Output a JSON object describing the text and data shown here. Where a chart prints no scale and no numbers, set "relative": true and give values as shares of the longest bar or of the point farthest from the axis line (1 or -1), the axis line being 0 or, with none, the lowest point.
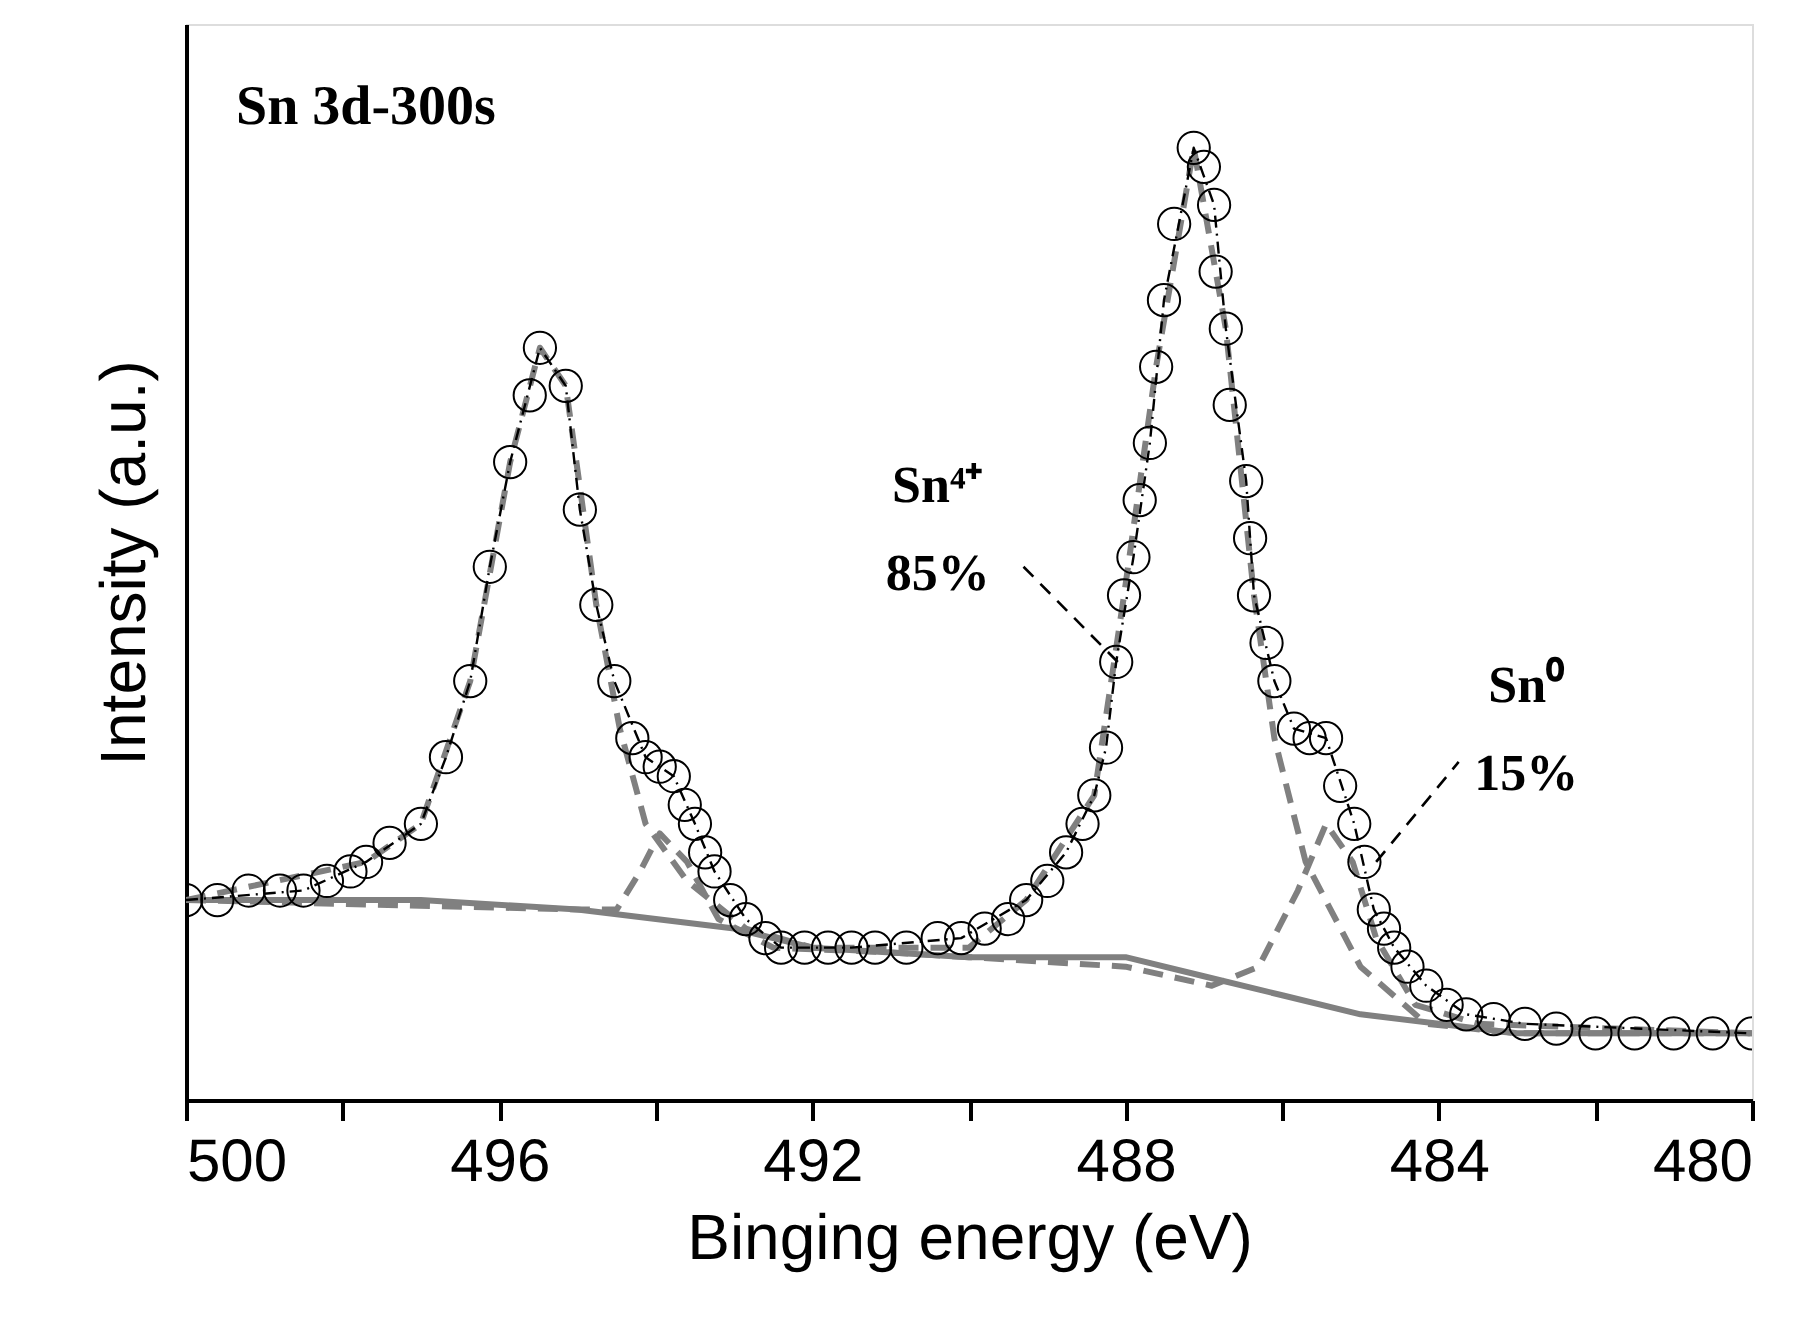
{
  "chart_data": {
    "type": "line",
    "relative": true,
    "xlabel": "Binging energy (eV)",
    "ylabel": "Intensity (a.u.)",
    "xlim": [
      500,
      480
    ],
    "xticks": [
      500,
      {
        "value": 498,
        "label": null
      },
      496,
      {
        "value": 494,
        "label": null
      },
      492,
      {
        "value": 490,
        "label": null
      },
      488,
      {
        "value": 486,
        "label": null
      },
      484,
      {
        "value": 482,
        "label": null
      },
      480
    ],
    "grid": false,
    "annotations": [
      "Sn 3d-300s",
      {
        "text": "Sn⁴⁺\n85%",
        "x": 488.1,
        "y": 0.46
      },
      {
        "text": "Sn⁰\n15%",
        "x": 484.8,
        "y": 0.25
      }
    ],
    "series": [
      {
        "color": "#808080",
        "line_style": "solid",
        "x": [
          500,
          497,
          495,
          494,
          493,
          492,
          490,
          489,
          488,
          487,
          486,
          485,
          484,
          483,
          480
        ],
        "values": [
          0.21,
          0.21,
          0.2,
          0.19,
          0.18,
          0.16,
          0.15,
          0.15,
          0.15,
          0.13,
          0.11,
          0.09,
          0.08,
          0.07,
          0.07
        ]
      },
      {
        "type": "line",
        "color": "#808080",
        "line_style": "dashed",
        "x": [
          500,
          497.7,
          497,
          496.37,
          495.86,
          495.48,
          495.15,
          494.76,
          494.46,
          494.13,
          493.6,
          492.85,
          492,
          490,
          489.27,
          488.4,
          488.02,
          487.61,
          487.13,
          486.72,
          486.36,
          486.1,
          485.7,
          485.0,
          484.16,
          483,
          480
        ],
        "values": [
          0.21,
          0.25,
          0.29,
          0.44,
          0.67,
          0.79,
          0.75,
          0.52,
          0.39,
          0.29,
          0.23,
          0.18,
          0.16,
          0.16,
          0.21,
          0.32,
          0.53,
          0.77,
          1.0,
          0.81,
          0.53,
          0.38,
          0.25,
          0.14,
          0.08,
          0.07,
          0.07
        ]
      },
      {
        "type": "line",
        "color": "#808080",
        "line_style": "dashed",
        "x": [
          500,
          495,
          494.5,
          494.2,
          493.95,
          493.6,
          493.2,
          492.5,
          491,
          490,
          488,
          486.9,
          486.3,
          485.8,
          485.44,
          485.1,
          484.8,
          484.3,
          483.5,
          480
        ],
        "values": [
          0.21,
          0.2,
          0.2,
          0.24,
          0.28,
          0.25,
          0.19,
          0.16,
          0.155,
          0.15,
          0.14,
          0.12,
          0.14,
          0.22,
          0.29,
          0.25,
          0.17,
          0.1,
          0.08,
          0.07
        ]
      },
      {
        "type": "line",
        "color": "#000000",
        "line_style": "dotted",
        "x": [
          500,
          498.5,
          497.7,
          497,
          496.68,
          496.37,
          496.12,
          495.86,
          495.48,
          495.15,
          494.97,
          494.76,
          494.53,
          494.13,
          493.77,
          493.5,
          493.25,
          492.85,
          492.4,
          491.5,
          490.1,
          489.27,
          488.76,
          488.4,
          488.25,
          488.12,
          487.9,
          487.69,
          487.51,
          487.13,
          486.87,
          486.72,
          486.46,
          486.36,
          486.1,
          485.85,
          485.44,
          485.08,
          484.83,
          484.57,
          484.16,
          483.65,
          482.9,
          480
        ],
        "values": [
          0.21,
          0.22,
          0.25,
          0.29,
          0.36,
          0.44,
          0.56,
          0.67,
          0.79,
          0.75,
          0.62,
          0.52,
          0.44,
          0.36,
          0.34,
          0.29,
          0.24,
          0.19,
          0.16,
          0.16,
          0.17,
          0.21,
          0.26,
          0.32,
          0.37,
          0.46,
          0.57,
          0.69,
          0.84,
          1.0,
          0.94,
          0.81,
          0.65,
          0.53,
          0.44,
          0.39,
          0.38,
          0.29,
          0.2,
          0.16,
          0.12,
          0.09,
          0.08,
          0.07
        ]
      },
      {
        "type": "scatter",
        "color": "#000000",
        "marker": "circle",
        "x": [
          500,
          499.6,
          499.2,
          498.8,
          498.5,
          498.2,
          497.9,
          497.7,
          497.4,
          497.0,
          496.68,
          496.37,
          496.12,
          495.86,
          495.61,
          495.48,
          495.15,
          494.97,
          494.76,
          494.53,
          494.3,
          494.13,
          493.95,
          493.77,
          493.63,
          493.5,
          493.37,
          493.25,
          493.05,
          492.85,
          492.6,
          492.4,
          492.1,
          491.8,
          491.5,
          491.2,
          490.8,
          490.4,
          490.1,
          489.8,
          489.5,
          489.27,
          489.0,
          488.76,
          488.55,
          488.4,
          488.25,
          488.12,
          488.02,
          487.9,
          487.82,
          487.69,
          487.61,
          487.51,
          487.38,
          487.13,
          487.0,
          486.87,
          486.85,
          486.72,
          486.67,
          486.46,
          486.41,
          486.36,
          486.2,
          486.1,
          485.85,
          485.65,
          485.44,
          485.26,
          485.08,
          484.95,
          484.83,
          484.7,
          484.57,
          484.4,
          484.16,
          483.9,
          483.65,
          483.3,
          482.9,
          482.5,
          482.0,
          481.5,
          481.0,
          480.5,
          480
        ],
        "values": [
          0.21,
          0.21,
          0.22,
          0.22,
          0.22,
          0.23,
          0.24,
          0.25,
          0.27,
          0.29,
          0.36,
          0.44,
          0.56,
          0.67,
          0.74,
          0.79,
          0.75,
          0.62,
          0.52,
          0.44,
          0.38,
          0.36,
          0.35,
          0.34,
          0.31,
          0.29,
          0.26,
          0.24,
          0.21,
          0.19,
          0.17,
          0.16,
          0.16,
          0.16,
          0.16,
          0.16,
          0.16,
          0.17,
          0.17,
          0.18,
          0.19,
          0.21,
          0.23,
          0.26,
          0.29,
          0.32,
          0.37,
          0.46,
          0.53,
          0.57,
          0.63,
          0.69,
          0.77,
          0.84,
          0.92,
          1.0,
          0.98,
          0.94,
          0.87,
          0.81,
          0.73,
          0.65,
          0.59,
          0.53,
          0.48,
          0.44,
          0.39,
          0.38,
          0.38,
          0.33,
          0.29,
          0.25,
          0.2,
          0.18,
          0.16,
          0.14,
          0.12,
          0.1,
          0.09,
          0.085,
          0.08,
          0.075,
          0.07,
          0.07,
          0.07,
          0.07,
          0.07
        ]
      }
    ]
  }
}
